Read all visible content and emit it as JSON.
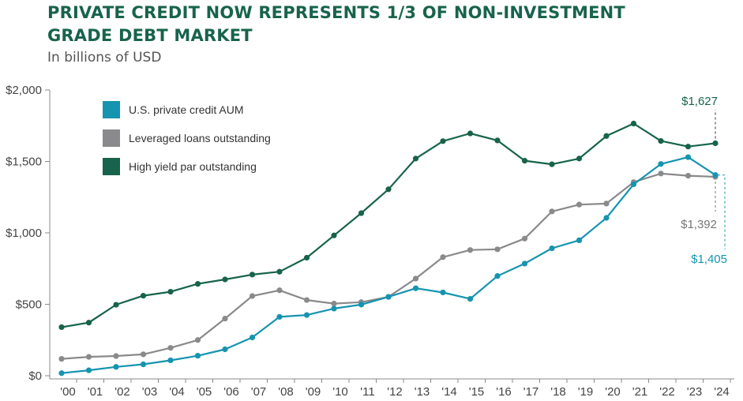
{
  "title_lines": [
    "PRIVATE CREDIT NOW REPRESENTS 1/3 OF NON-INVESTMENT",
    "GRADE DEBT MARKET"
  ],
  "subtitle": "In billions of USD",
  "colors": {
    "title": "#17634b",
    "hy": "#17634b",
    "ll": "#8a8a8c",
    "pc": "#1594b0",
    "axis": "#888888"
  },
  "chart_data": {
    "type": "line",
    "title": "PRIVATE CREDIT NOW REPRESENTS 1/3 OF NON-INVESTMENT GRADE DEBT MARKET",
    "ylabel": "In billions of USD",
    "x": [
      "'00",
      "'01",
      "'02",
      "'03",
      "'04",
      "'05",
      "'06",
      "'07",
      "'08",
      "'09",
      "'10",
      "'11",
      "'12",
      "'13",
      "'14",
      "'15",
      "'16",
      "'17",
      "'18",
      "'19",
      "'20",
      "'21",
      "'22",
      "'23",
      "'24"
    ],
    "ylim": [
      0,
      2000
    ],
    "yticks": [
      0,
      500,
      1000,
      1500,
      2000
    ],
    "ytick_labels": [
      "$0",
      "$500",
      "$1,000",
      "$1,500",
      "$2,000"
    ],
    "legend_position": "top-left",
    "series": [
      {
        "name": "U.S. private credit AUM",
        "key": "pc",
        "values": [
          18,
          38,
          62,
          80,
          108,
          140,
          185,
          268,
          412,
          425,
          470,
          498,
          552,
          612,
          583,
          538,
          698,
          785,
          892,
          948,
          1105,
          1340,
          1482,
          1530,
          1405
        ]
      },
      {
        "name": "Leveraged loans outstanding",
        "key": "ll",
        "values": [
          118,
          132,
          138,
          150,
          195,
          250,
          400,
          558,
          598,
          530,
          505,
          515,
          552,
          680,
          830,
          880,
          885,
          960,
          1150,
          1198,
          1205,
          1355,
          1415,
          1400,
          1392
        ]
      },
      {
        "name": "High yield par outstanding",
        "key": "hy",
        "values": [
          340,
          372,
          497,
          560,
          588,
          643,
          674,
          708,
          728,
          826,
          982,
          1138,
          1305,
          1520,
          1642,
          1696,
          1647,
          1505,
          1480,
          1520,
          1678,
          1765,
          1643,
          1604,
          1627
        ]
      }
    ],
    "end_labels": {
      "hy": "$1,627",
      "ll": "$1,392",
      "pc": "$1,405"
    }
  }
}
